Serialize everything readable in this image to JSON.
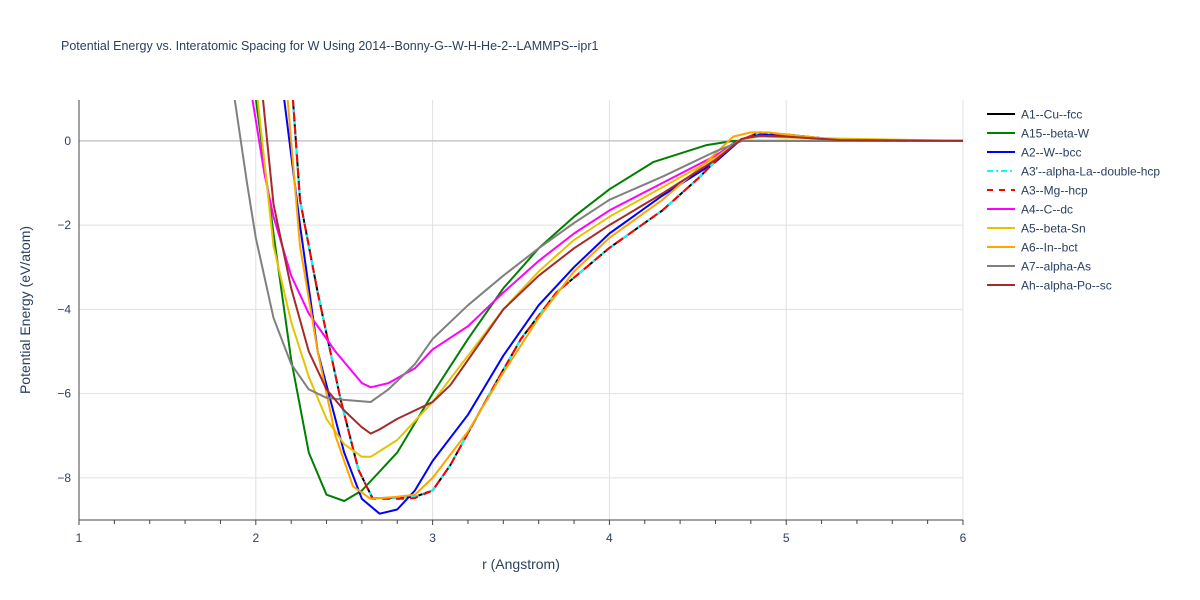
{
  "chart_data": {
    "type": "line",
    "title": "Potential Energy vs. Interatomic Spacing for W Using 2014--Bonny-G--W-H-He-2--LAMMPS--ipr1",
    "xlabel": "r (Angstrom)",
    "ylabel": "Potential Energy (eV/atom)",
    "xlim": [
      1,
      6
    ],
    "ylim": [
      -9,
      0.97
    ],
    "xticks": [
      1,
      2,
      3,
      4,
      5,
      6
    ],
    "yticks": [
      0,
      -2,
      -4,
      -6,
      -8
    ],
    "ytick_labels": [
      "0",
      "−2",
      "−4",
      "−6",
      "−8"
    ],
    "grid": true,
    "legend_position": "right",
    "series": [
      {
        "name": "A1--Cu--fcc",
        "color": "#000000",
        "dash": "solid",
        "x": [
          2.18,
          2.21,
          2.25,
          2.35,
          2.48,
          2.58,
          2.66,
          2.8,
          2.9,
          3.0,
          3.1,
          3.21,
          3.35,
          3.5,
          3.7,
          4.0,
          4.3,
          4.5,
          4.7,
          4.85,
          5.0,
          5.3,
          5.5,
          6.0
        ],
        "y": [
          3,
          1,
          -1.4,
          -3.6,
          -6.15,
          -7.8,
          -8.48,
          -8.47,
          -8.45,
          -8.3,
          -7.7,
          -6.86,
          -5.8,
          -4.7,
          -3.6,
          -2.54,
          -1.65,
          -0.9,
          -0.05,
          0.2,
          0.15,
          0.02,
          0,
          0
        ]
      },
      {
        "name": "A15--beta-W",
        "color": "#008000",
        "dash": "solid",
        "x": [
          1.98,
          2.0,
          2.1,
          2.2,
          2.3,
          2.4,
          2.5,
          2.6,
          2.8,
          3.0,
          3.2,
          3.4,
          3.6,
          3.8,
          4.0,
          4.25,
          4.55,
          4.7,
          6.0
        ],
        "y": [
          3,
          1,
          -2.2,
          -5.2,
          -7.4,
          -8.4,
          -8.55,
          -8.3,
          -7.4,
          -6.0,
          -4.7,
          -3.5,
          -2.55,
          -1.8,
          -1.15,
          -0.5,
          -0.1,
          0,
          0
        ]
      },
      {
        "name": "A2--W--bcc",
        "color": "#0000ff",
        "dash": "solid",
        "x": [
          2.14,
          2.16,
          2.25,
          2.35,
          2.5,
          2.6,
          2.7,
          2.8,
          2.9,
          3.0,
          3.2,
          3.4,
          3.6,
          3.8,
          4.0,
          4.3,
          4.6,
          4.75,
          4.85,
          5.0,
          5.3,
          6.0
        ],
        "y": [
          3,
          1,
          -2.0,
          -5.0,
          -7.4,
          -8.5,
          -8.85,
          -8.75,
          -8.3,
          -7.6,
          -6.5,
          -5.1,
          -3.9,
          -3.0,
          -2.2,
          -1.3,
          -0.5,
          0.05,
          0.15,
          0.12,
          0.02,
          0
        ]
      },
      {
        "name": "A3'--alpha-La--double-hcp",
        "color": "#00ffff",
        "dash": "dashdot",
        "x": [
          2.18,
          2.21,
          2.25,
          2.35,
          2.48,
          2.58,
          2.66,
          2.8,
          2.9,
          3.0,
          3.1,
          3.21,
          3.35,
          3.5,
          3.7,
          4.0,
          4.3,
          4.5,
          4.7,
          4.85,
          5.0,
          5.3,
          5.5,
          6.0
        ],
        "y": [
          3,
          1,
          -1.4,
          -3.6,
          -6.15,
          -7.8,
          -8.48,
          -8.47,
          -8.45,
          -8.3,
          -7.7,
          -6.86,
          -5.8,
          -4.7,
          -3.6,
          -2.54,
          -1.65,
          -0.9,
          -0.05,
          0.2,
          0.15,
          0.02,
          0,
          0
        ]
      },
      {
        "name": "A3--Mg--hcp",
        "color": "#ff0000",
        "dash": "dash",
        "x": [
          2.18,
          2.21,
          2.25,
          2.35,
          2.48,
          2.58,
          2.66,
          2.8,
          2.9,
          3.0,
          3.1,
          3.21,
          3.35,
          3.5,
          3.7,
          4.0,
          4.3,
          4.5,
          4.7,
          4.85,
          5.0,
          5.3,
          5.5,
          6.0
        ],
        "y": [
          3,
          1,
          -1.4,
          -3.6,
          -6.15,
          -7.8,
          -8.5,
          -8.5,
          -8.48,
          -8.3,
          -7.7,
          -6.86,
          -5.8,
          -4.7,
          -3.6,
          -2.54,
          -1.65,
          -0.9,
          -0.05,
          0.2,
          0.15,
          0.02,
          0,
          0
        ]
      },
      {
        "name": "A4--C--dc",
        "color": "#ff00ff",
        "dash": "solid",
        "x": [
          1.96,
          1.98,
          2.05,
          2.1,
          2.2,
          2.3,
          2.45,
          2.6,
          2.65,
          2.75,
          2.9,
          3.0,
          3.2,
          3.4,
          3.6,
          3.8,
          4.0,
          4.3,
          4.6,
          4.75,
          4.85,
          5.0,
          5.3,
          6.0
        ],
        "y": [
          3,
          1,
          -0.8,
          -1.8,
          -3.2,
          -4.1,
          -5.0,
          -5.75,
          -5.85,
          -5.75,
          -5.4,
          -4.95,
          -4.4,
          -3.6,
          -2.85,
          -2.2,
          -1.65,
          -1.0,
          -0.35,
          0.05,
          0.12,
          0.1,
          0.02,
          0
        ]
      },
      {
        "name": "A5--beta-Sn",
        "color": "#e6c300",
        "dash": "solid",
        "x": [
          1.99,
          2.01,
          2.1,
          2.2,
          2.3,
          2.4,
          2.5,
          2.6,
          2.65,
          2.8,
          3.0,
          3.2,
          3.4,
          3.6,
          3.8,
          4.0,
          4.3,
          4.6,
          4.75,
          4.85,
          5.0,
          6.0
        ],
        "y": [
          3,
          1,
          -2.5,
          -4.3,
          -5.6,
          -6.6,
          -7.2,
          -7.5,
          -7.5,
          -7.1,
          -6.2,
          -5.1,
          -4.0,
          -3.1,
          -2.35,
          -1.8,
          -1.1,
          -0.4,
          0.05,
          0.1,
          0.08,
          0
        ]
      },
      {
        "name": "A6--In--bct",
        "color": "#ffa500",
        "dash": "solid",
        "x": [
          2.16,
          2.18,
          2.25,
          2.35,
          2.45,
          2.55,
          2.65,
          2.8,
          2.9,
          3.0,
          3.2,
          3.4,
          3.6,
          3.8,
          4.0,
          4.3,
          4.55,
          4.7,
          4.8,
          4.9,
          5.0,
          5.3,
          6.0
        ],
        "y": [
          3,
          1,
          -2.5,
          -5.0,
          -7.0,
          -8.2,
          -8.5,
          -8.45,
          -8.4,
          -8.0,
          -6.9,
          -5.5,
          -4.2,
          -3.1,
          -2.3,
          -1.4,
          -0.5,
          0.1,
          0.2,
          0.2,
          0.15,
          0.02,
          0
        ]
      },
      {
        "name": "A7--alpha-As",
        "color": "#808080",
        "dash": "solid",
        "x": [
          1.86,
          1.88,
          1.95,
          2.0,
          2.1,
          2.2,
          2.3,
          2.4,
          2.5,
          2.65,
          2.75,
          2.9,
          3.0,
          3.2,
          3.4,
          3.6,
          3.8,
          4.0,
          4.3,
          4.6,
          4.75,
          6.0
        ],
        "y": [
          3,
          1,
          -1.0,
          -2.3,
          -4.2,
          -5.3,
          -5.9,
          -6.1,
          -6.15,
          -6.2,
          -5.9,
          -5.3,
          -4.7,
          -3.9,
          -3.2,
          -2.55,
          -1.95,
          -1.4,
          -0.85,
          -0.25,
          0,
          0
        ]
      },
      {
        "name": "Ah--alpha-Po--sc",
        "color": "#a52a2a",
        "dash": "solid",
        "x": [
          2.02,
          2.04,
          2.1,
          2.2,
          2.3,
          2.4,
          2.5,
          2.6,
          2.65,
          2.7,
          2.8,
          3.0,
          3.1,
          3.2,
          3.4,
          3.6,
          3.8,
          4.0,
          4.3,
          4.6,
          4.75,
          4.85,
          5.0,
          5.3,
          6.0
        ],
        "y": [
          3,
          1,
          -1.5,
          -3.5,
          -5.0,
          -5.9,
          -6.4,
          -6.8,
          -6.95,
          -6.85,
          -6.6,
          -6.2,
          -5.8,
          -5.2,
          -4.0,
          -3.2,
          -2.55,
          -2.0,
          -1.25,
          -0.45,
          0.05,
          0.12,
          0.1,
          0.02,
          0
        ]
      }
    ]
  }
}
